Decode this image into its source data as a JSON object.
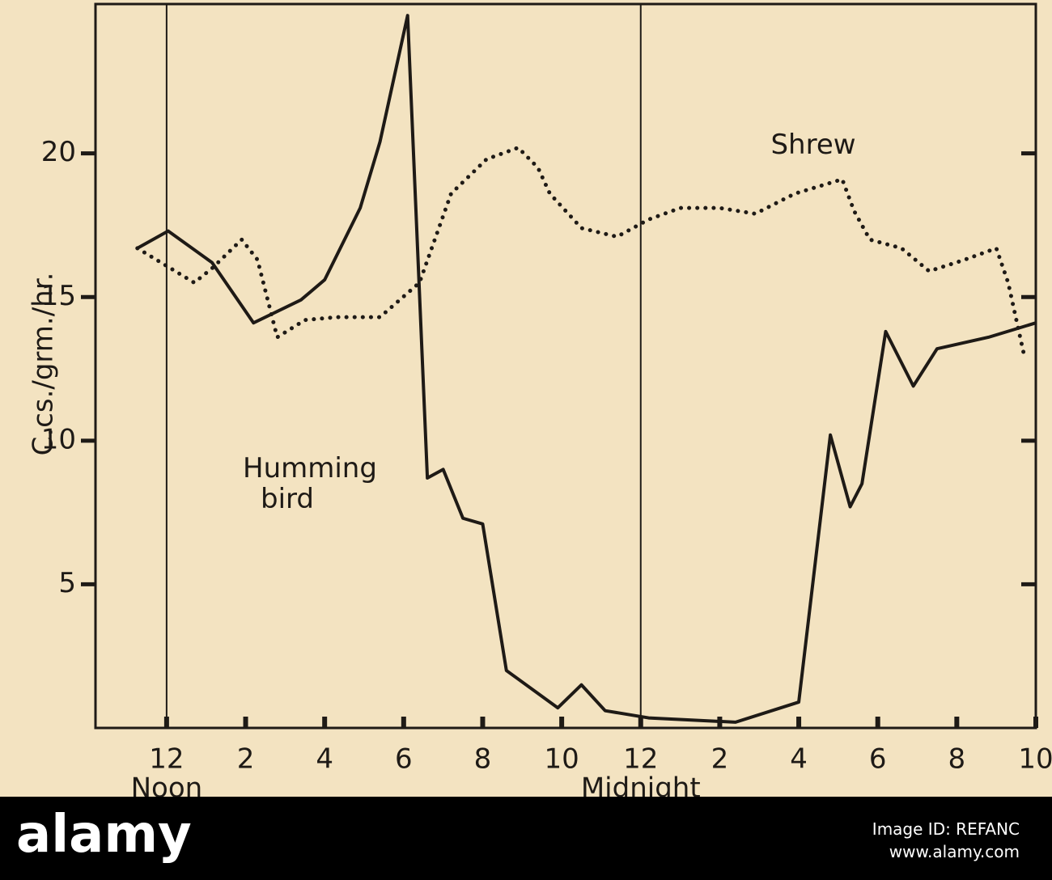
{
  "chart_data": {
    "type": "line",
    "y_label": "C.cs./grm./hr.",
    "xlim": [
      10.2,
      34
    ],
    "ylim": [
      0,
      25.2
    ],
    "xticks": [
      {
        "value": 12,
        "label": "12"
      },
      {
        "value": 14,
        "label": "2"
      },
      {
        "value": 16,
        "label": "4"
      },
      {
        "value": 18,
        "label": "6"
      },
      {
        "value": 20,
        "label": "8"
      },
      {
        "value": 22,
        "label": "10"
      },
      {
        "value": 24,
        "label": "12"
      },
      {
        "value": 26,
        "label": "2"
      },
      {
        "value": 28,
        "label": "4"
      },
      {
        "value": 30,
        "label": "6"
      },
      {
        "value": 32,
        "label": "8"
      },
      {
        "value": 34,
        "label": "10"
      }
    ],
    "yticks": [
      5,
      10,
      15,
      20
    ],
    "vlines": [
      12,
      24
    ],
    "x_annotations": [
      {
        "text": "Noon",
        "x": 12
      },
      {
        "text": "Midnight",
        "x": 24
      }
    ],
    "series": [
      {
        "name": "Humming bird",
        "color": "#1e1a16",
        "style": "solid",
        "x": [
          11.26,
          12.04,
          13.15,
          14.2,
          15.4,
          16.0,
          16.9,
          17.4,
          18.1,
          18.6,
          19.0,
          19.5,
          20.0,
          20.6,
          21.9,
          22.5,
          23.1,
          24.2,
          26.4,
          28.0,
          28.8,
          29.3,
          29.6,
          30.2,
          30.9,
          31.5,
          32.8,
          34.0
        ],
        "values": [
          16.7,
          17.3,
          16.2,
          14.1,
          14.9,
          15.6,
          18.1,
          20.4,
          24.8,
          8.7,
          9.0,
          7.3,
          7.1,
          2.0,
          0.7,
          1.5,
          0.6,
          0.35,
          0.2,
          0.9,
          10.2,
          7.7,
          8.5,
          13.8,
          11.9,
          13.2,
          13.6,
          14.1
        ]
      },
      {
        "name": "Shrew",
        "color": "#1e1a16",
        "style": "dotted",
        "x": [
          11.26,
          12.1,
          12.7,
          13.15,
          13.9,
          14.3,
          14.8,
          15.5,
          16.3,
          17.4,
          18.4,
          19.2,
          20.1,
          20.9,
          21.4,
          21.7,
          22.5,
          23.4,
          24.2,
          25.0,
          26.0,
          26.9,
          27.9,
          29.1,
          29.4,
          29.8,
          30.6,
          31.3,
          32.2,
          33.0,
          33.3,
          33.7
        ],
        "values": [
          16.7,
          16.0,
          15.5,
          16.0,
          17.0,
          16.3,
          13.6,
          14.2,
          14.3,
          14.3,
          15.5,
          18.6,
          19.8,
          20.2,
          19.5,
          18.6,
          17.4,
          17.1,
          17.7,
          18.1,
          18.1,
          17.9,
          18.6,
          19.1,
          18.0,
          17.0,
          16.7,
          15.9,
          16.3,
          16.7,
          15.5,
          13.0
        ]
      }
    ]
  },
  "footer": {
    "brand": "alamy",
    "image_id": "Image ID: REFANC",
    "url": "www.alamy.com"
  }
}
